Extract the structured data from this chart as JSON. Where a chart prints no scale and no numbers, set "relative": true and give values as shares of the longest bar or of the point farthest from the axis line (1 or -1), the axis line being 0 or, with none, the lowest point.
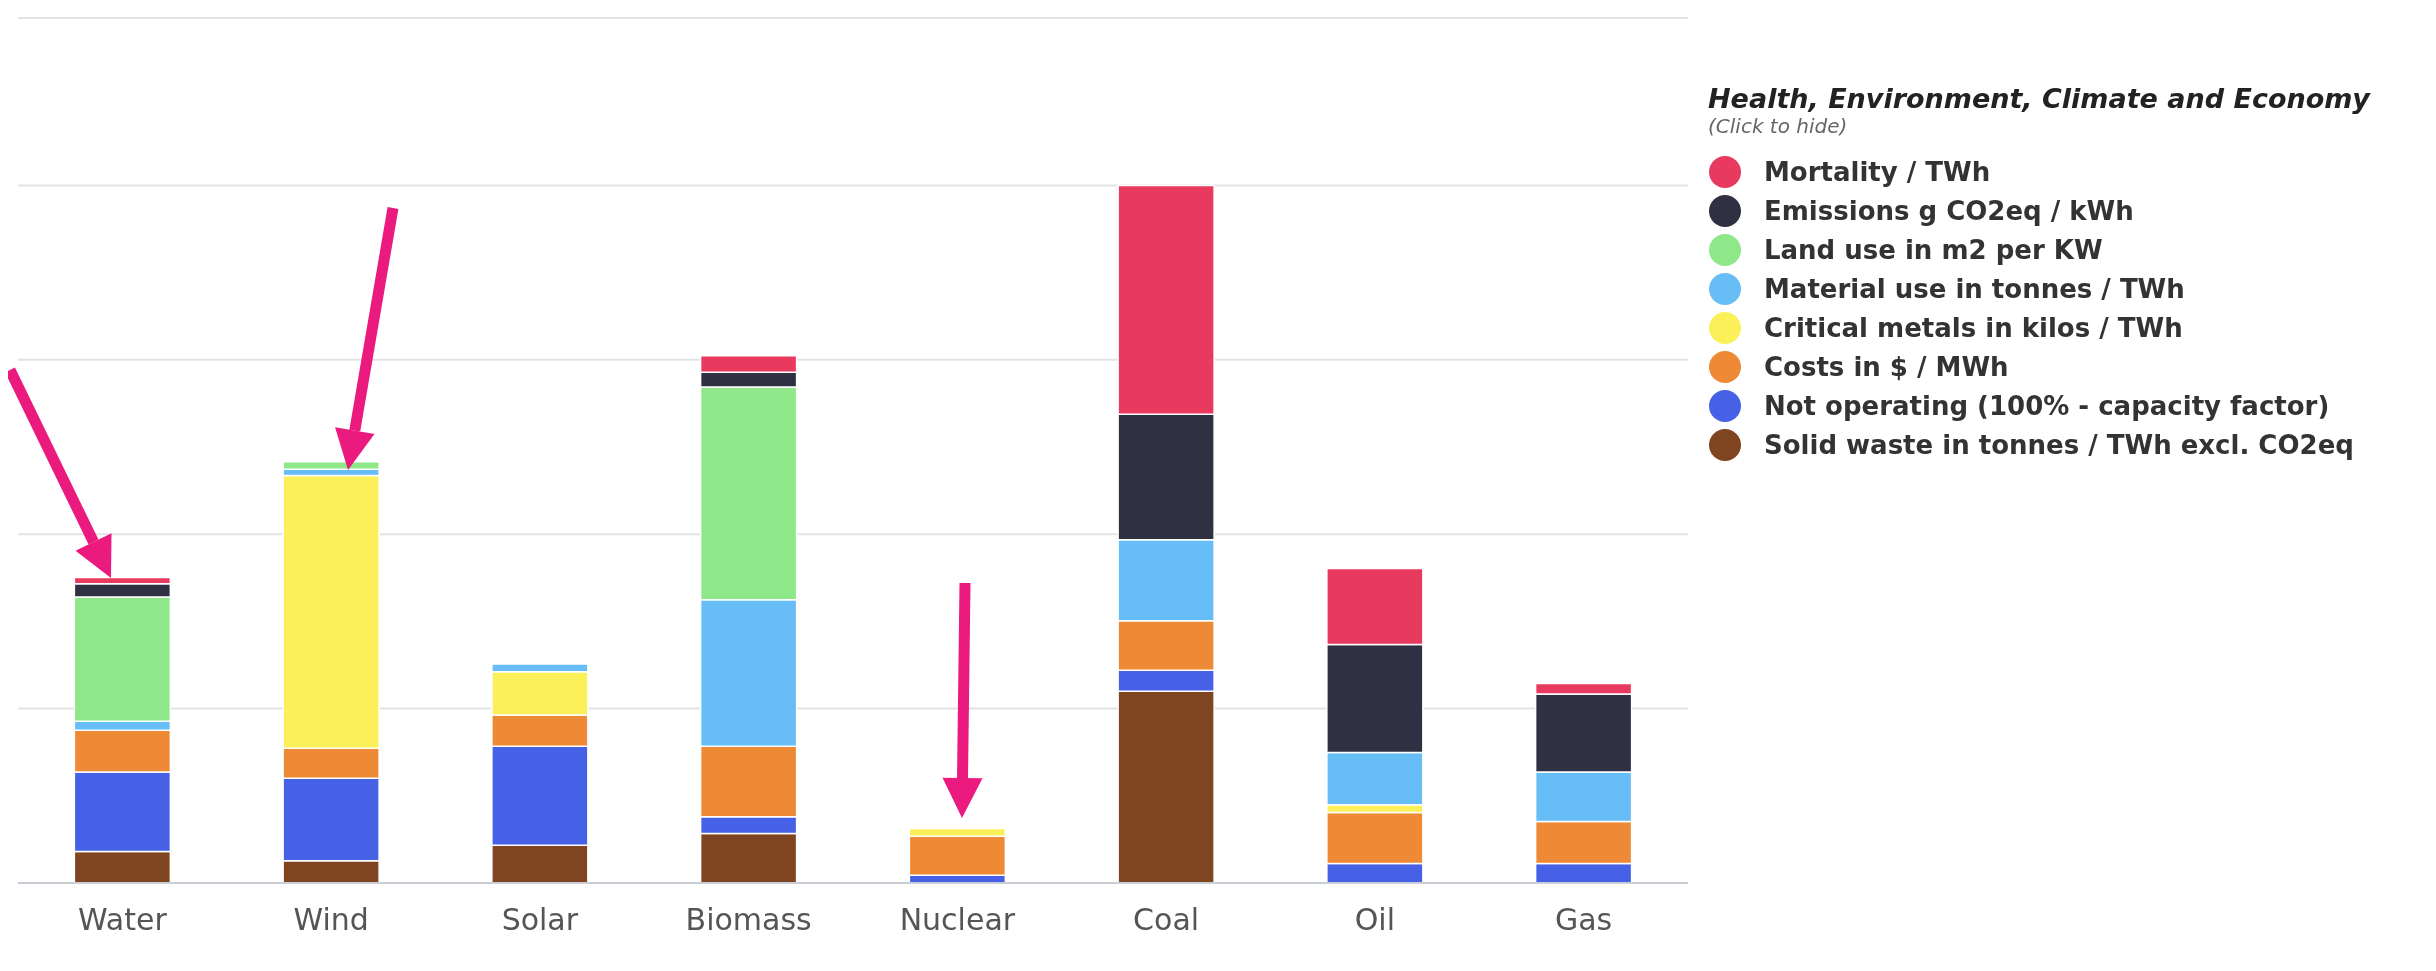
{
  "chart_data": {
    "type": "bar",
    "stacked": true,
    "relative": true,
    "grid": true,
    "legend": "right",
    "legend_title": "Health, Environment, Climate and Economy",
    "annotations": [
      "(Click to hide)"
    ],
    "categories": [
      "Water",
      "Wind",
      "Solar",
      "Biomass",
      "Nuclear",
      "Coal",
      "Oil",
      "Gas"
    ],
    "series": [
      {
        "name": "Solid waste in tonnes / TWh excl. CO2eq",
        "color": "#7f4420",
        "values": [
          0.045,
          0.032,
          0.054,
          0.071,
          null,
          0.275,
          0,
          0
        ]
      },
      {
        "name": "Not operating (100% - capacity factor)",
        "color": "#4660e6",
        "values": [
          0.114,
          0.118,
          0.142,
          0.024,
          0.011,
          0.03,
          0.028,
          0.028
        ]
      },
      {
        "name": "Costs in $ / MWh",
        "color": "#ee8a36",
        "values": [
          0.06,
          0.043,
          0.045,
          0.101,
          0.056,
          0.071,
          0.073,
          0.06
        ]
      },
      {
        "name": "Critical metals in kilos / TWh",
        "color": "#fbf05a",
        "values": [
          0,
          0.391,
          0.062,
          0,
          0.011,
          0,
          0.011,
          0
        ]
      },
      {
        "name": "Material use in tonnes / TWh",
        "color": "#67bdf5",
        "values": [
          0.013,
          0.009,
          0.011,
          0.21,
          0,
          0.116,
          0.075,
          0.071
        ]
      },
      {
        "name": "Land use in m2 per KW",
        "color": "#8ee88a",
        "values": [
          0.178,
          0.011,
          0,
          0.305,
          0,
          0,
          0,
          0
        ]
      },
      {
        "name": "Emissions g CO2eq / kWh",
        "color": "#2f3142",
        "values": [
          0.019,
          0,
          0,
          0.021,
          0,
          0.18,
          0.155,
          0.112
        ]
      },
      {
        "name": "Mortality / TWh",
        "color": "#e8395f",
        "values": [
          0.009,
          0,
          0,
          0.024,
          0,
          0.328,
          0.109,
          0.015
        ]
      }
    ]
  }
}
